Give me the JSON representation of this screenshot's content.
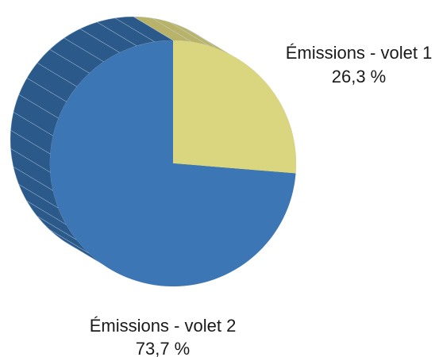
{
  "chart_data": {
    "type": "pie",
    "style": "3d-tilted",
    "title": "",
    "slices": [
      {
        "label": "Émissions - volet 1",
        "value": 26.3,
        "value_label": "26,3 %",
        "color": "#dad57f",
        "side_color": "#b9b36a"
      },
      {
        "label": "Émissions - volet 2",
        "value": 73.7,
        "value_label": "73,7 %",
        "color": "#3c76b4",
        "side_color": "#2b5a8a"
      }
    ],
    "edge_color": "#c9d8ea"
  }
}
